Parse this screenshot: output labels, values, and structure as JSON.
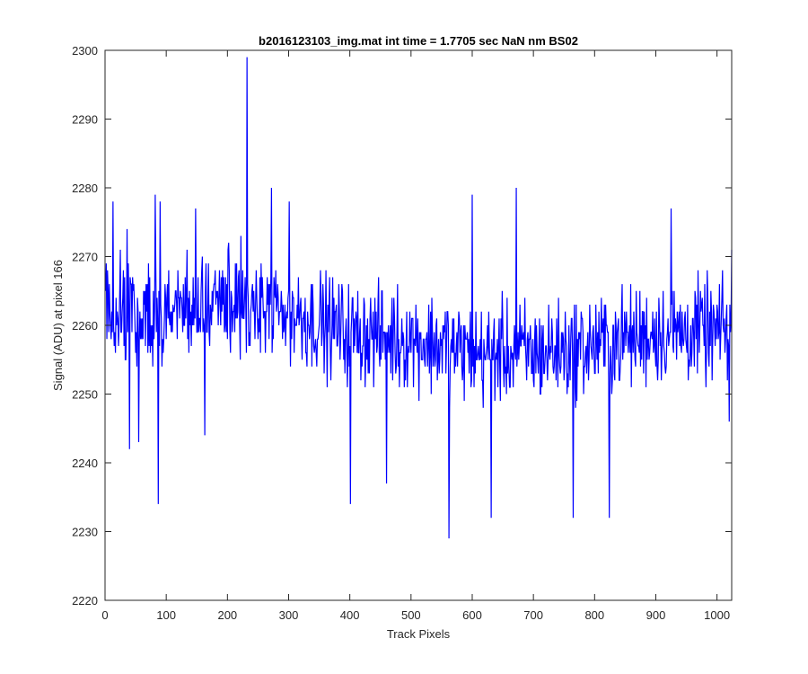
{
  "chart_data": {
    "type": "line",
    "title": "b2016123103_img.mat int time = 1.7705 sec  NaN nm BS02",
    "xlabel": "Track Pixels",
    "ylabel": "Signal (ADU) at pixel 166",
    "xlim": [
      0,
      1024
    ],
    "ylim": [
      2220,
      2300
    ],
    "xticks": [
      0,
      100,
      200,
      300,
      400,
      500,
      600,
      700,
      800,
      900,
      1000
    ],
    "yticks": [
      2220,
      2230,
      2240,
      2250,
      2260,
      2270,
      2280,
      2290,
      2300
    ],
    "grid": false,
    "legend": "none",
    "line_color": "#0000ff",
    "series": [
      {
        "x_start": 1,
        "x_step": 1,
        "n_points": 1024,
        "baseline": [
          [
            0,
            2262
          ],
          [
            100,
            2262
          ],
          [
            200,
            2263
          ],
          [
            300,
            2262
          ],
          [
            400,
            2259
          ],
          [
            500,
            2258
          ],
          [
            600,
            2256
          ],
          [
            700,
            2256
          ],
          [
            800,
            2257
          ],
          [
            900,
            2259
          ],
          [
            1024,
            2259
          ]
        ],
        "noise_half_range": 8,
        "extrema": [
          [
            2,
            2269
          ],
          [
            13,
            2278
          ],
          [
            36,
            2274
          ],
          [
            40,
            2242
          ],
          [
            55,
            2243
          ],
          [
            82,
            2279
          ],
          [
            87,
            2234
          ],
          [
            90,
            2278
          ],
          [
            148,
            2277
          ],
          [
            163,
            2244
          ],
          [
            232,
            2299
          ],
          [
            233,
            2266
          ],
          [
            272,
            2280
          ],
          [
            301,
            2278
          ],
          [
            401,
            2234
          ],
          [
            460,
            2237
          ],
          [
            562,
            2229
          ],
          [
            600,
            2279
          ],
          [
            631,
            2232
          ],
          [
            672,
            2280
          ],
          [
            765,
            2232
          ],
          [
            824,
            2232
          ],
          [
            925,
            2277
          ],
          [
            1020,
            2246
          ],
          [
            1024,
            2271
          ]
        ]
      }
    ]
  }
}
